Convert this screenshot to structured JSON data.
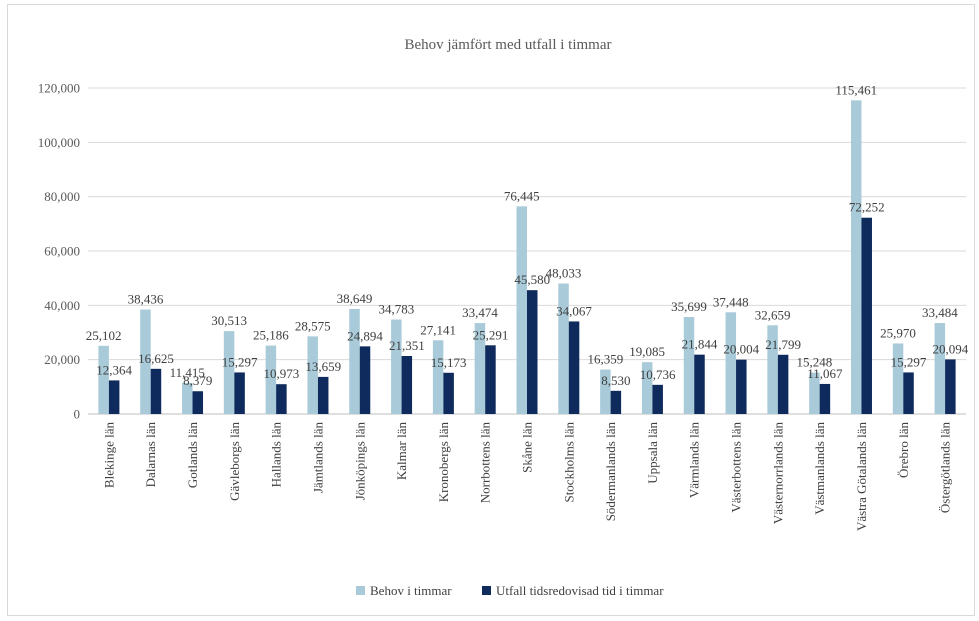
{
  "chart_data": {
    "type": "bar",
    "title": "Behov jämfört med utfall i timmar",
    "xlabel": "",
    "ylabel": "",
    "ylim": [
      0,
      120000
    ],
    "yticks": [
      0,
      20000,
      40000,
      60000,
      80000,
      100000,
      120000
    ],
    "ytick_labels": [
      "0",
      "20,000",
      "40,000",
      "60,000",
      "80,000",
      "100,000",
      "120,000"
    ],
    "grid": true,
    "legend_position": "bottom",
    "categories": [
      "Blekinge län",
      "Dalarnas län",
      "Gotlands län",
      "Gävleborgs län",
      "Hallands län",
      "Jämtlands län",
      "Jönköpings län",
      "Kalmar län",
      "Kronobergs län",
      "Norrbottens län",
      "Skåne län",
      "Stockholms län",
      "Södermanlands län",
      "Uppsala län",
      "Värmlands län",
      "Västerbottens län",
      "Västernorrlands län",
      "Västmanlands län",
      "Västra Götalands län",
      "Örebro län",
      "Östergötlands län"
    ],
    "series": [
      {
        "name": "Behov i timmar",
        "color": "#a9cbd9",
        "values": [
          25102,
          38436,
          11415,
          30513,
          25186,
          28575,
          38649,
          34783,
          27141,
          33474,
          76445,
          48033,
          16359,
          19085,
          35699,
          37448,
          32659,
          15248,
          115461,
          25970,
          33484
        ],
        "labels": [
          "25,102",
          "38,436",
          "11,415",
          "30,513",
          "25,186",
          "28,575",
          "38,649",
          "34,783",
          "27,141",
          "33,474",
          "76,445",
          "48,033",
          "16,359",
          "19,085",
          "35,699",
          "37,448",
          "32,659",
          "15,248",
          "115,461",
          "25,970",
          "33,484"
        ]
      },
      {
        "name": "Utfall tidsredovisad tid i timmar",
        "color": "#0f2a5c",
        "values": [
          12364,
          16625,
          8379,
          15297,
          10973,
          13659,
          24894,
          21351,
          15173,
          25291,
          45580,
          34067,
          8530,
          10736,
          21844,
          20004,
          21799,
          11067,
          72252,
          15297,
          20094
        ],
        "labels": [
          "12,364",
          "16,625",
          "8,379",
          "15,297",
          "10,973",
          "13,659",
          "24,894",
          "21,351",
          "15,173",
          "25,291",
          "45,580",
          "34,067",
          "8,530",
          "10,736",
          "21,844",
          "20,004",
          "21,799",
          "11,067",
          "72,252",
          "15,297",
          "20,094"
        ]
      }
    ]
  }
}
